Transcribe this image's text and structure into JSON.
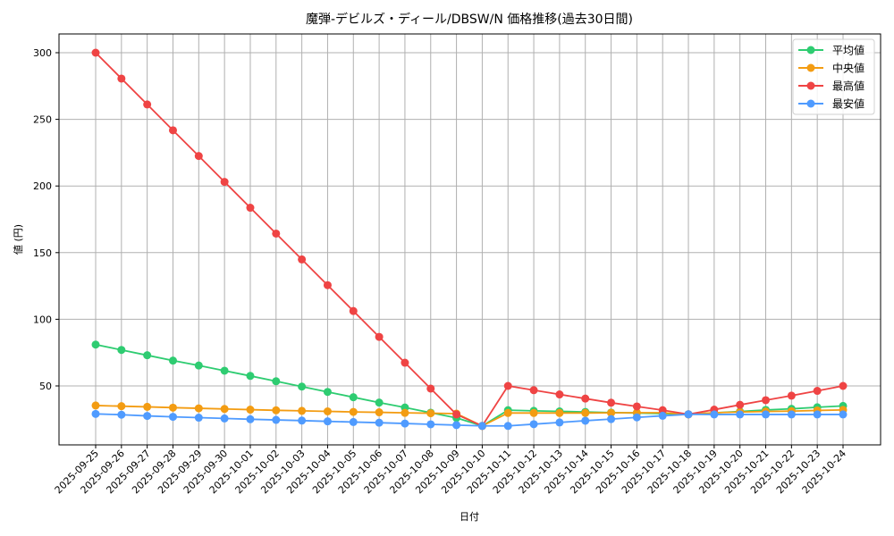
{
  "chart_data": {
    "type": "line",
    "title": "魔弾-デビルズ・ディール/DBSW/N 価格推移(過去30日間)",
    "xlabel": "日付",
    "ylabel": "値 (円)",
    "ylim": [
      13,
      313
    ],
    "yticks": [
      50,
      100,
      150,
      200,
      250,
      300
    ],
    "grid": true,
    "legend_position": "upper right",
    "categories": [
      "2025-09-25",
      "2025-09-26",
      "2025-09-27",
      "2025-09-28",
      "2025-09-29",
      "2025-09-30",
      "2025-10-01",
      "2025-10-02",
      "2025-10-03",
      "2025-10-04",
      "2025-10-05",
      "2025-10-06",
      "2025-10-07",
      "2025-10-08",
      "2025-10-09",
      "2025-10-10",
      "2025-10-11",
      "2025-10-12",
      "2025-10-13",
      "2025-10-14",
      "2025-10-15",
      "2025-10-16",
      "2025-10-17",
      "2025-10-18",
      "2025-10-19",
      "2025-10-20",
      "2025-10-21",
      "2025-10-22",
      "2025-10-23",
      "2025-10-24"
    ],
    "series": [
      {
        "name": "平均値",
        "color": "#2ecc71",
        "values": [
          81,
          77,
          73,
          69,
          65.3,
          61.4,
          57.5,
          53.5,
          49.5,
          45.5,
          41.5,
          37.5,
          33.8,
          29.9,
          26,
          20,
          31.8,
          31.3,
          30.9,
          30.5,
          30,
          29.7,
          29.2,
          28.7,
          29.8,
          30.8,
          32,
          32.8,
          34,
          35
        ]
      },
      {
        "name": "中央値",
        "color": "#f39c12",
        "values": [
          35.3,
          34.8,
          34.3,
          33.7,
          33.2,
          32.7,
          32.2,
          31.7,
          31.3,
          30.9,
          30.5,
          30.2,
          29.8,
          29.5,
          29.2,
          20,
          29.7,
          29.7,
          29.7,
          29.7,
          29.8,
          29.9,
          29.9,
          28.7,
          29.9,
          30.4,
          30.8,
          31.1,
          31.6,
          32
        ]
      },
      {
        "name": "最高値",
        "color": "#ef4444",
        "values": [
          300,
          280.6,
          261.2,
          241.8,
          222.5,
          203.1,
          183.7,
          164.3,
          144.9,
          125.6,
          106.2,
          86.8,
          67.4,
          48,
          28.6,
          20,
          50,
          46.8,
          43.6,
          40.5,
          37.4,
          34.6,
          31.8,
          28.7,
          32.2,
          35.8,
          39.3,
          42.7,
          46.3,
          50
        ]
      },
      {
        "name": "最安値",
        "color": "#4f9bff",
        "values": [
          29,
          28.4,
          27.5,
          26.8,
          26.2,
          25.6,
          25,
          24.5,
          24,
          23.4,
          22.9,
          22.4,
          21.8,
          21.2,
          20.6,
          20,
          20,
          21.3,
          22.6,
          23.9,
          25.1,
          26.4,
          27.6,
          28.7,
          28.6,
          28.6,
          28.6,
          28.6,
          28.6,
          28.6
        ]
      }
    ]
  }
}
